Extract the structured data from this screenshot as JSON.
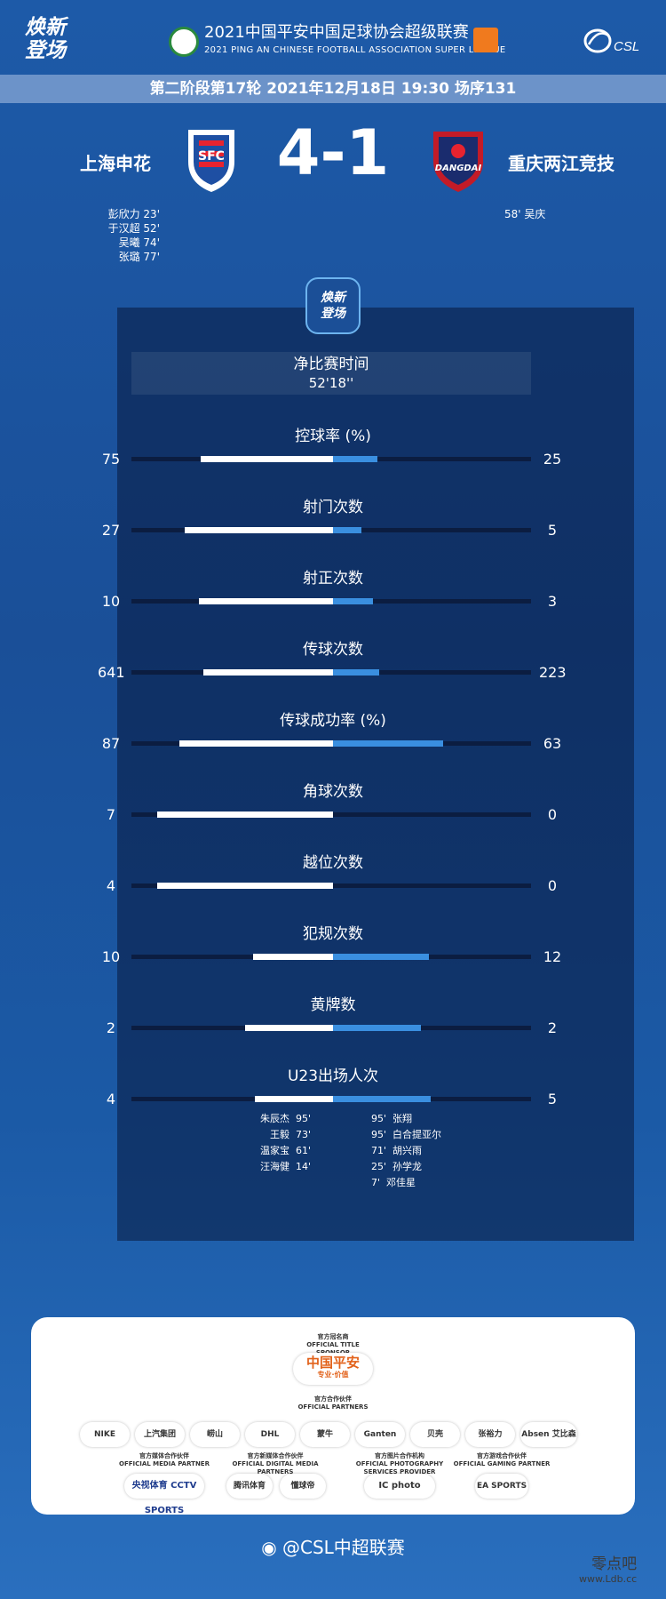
{
  "header": {
    "brand": [
      "焕新",
      "登场"
    ],
    "title_cn": "2021中国平安中国足球协会超级联赛",
    "title_en": "2021 PING AN CHINESE FOOTBALL ASSOCIATION SUPER LEAGUE",
    "csl_mark": "CSL"
  },
  "match": {
    "round_info": "第二阶段第17轮  2021年12月18日 19:30 场序131",
    "home_team": "上海申花",
    "away_team": "重庆两江竞技",
    "score": "4-1",
    "home_crest_text": "SFC",
    "away_crest_text": "DANGDAI",
    "home_scorers": [
      {
        "name": "彭欣力",
        "minute": "23'"
      },
      {
        "name": "于汉超",
        "minute": "52'"
      },
      {
        "name": "吴曦",
        "minute": "74'"
      },
      {
        "name": "张璐",
        "minute": "77'"
      }
    ],
    "away_scorers": [
      {
        "name": "吴庆",
        "minute": "58'"
      }
    ]
  },
  "panel": {
    "badge": [
      "焕新",
      "登场"
    ],
    "net_time_label": "净比赛时间",
    "net_time_value": "52'18''"
  },
  "stats": [
    {
      "label": "控球率 (%)",
      "home": "75",
      "away": "25",
      "home_frac": 0.66,
      "away_frac": 0.22
    },
    {
      "label": "射门次数",
      "home": "27",
      "away": "5",
      "home_frac": 0.74,
      "away_frac": 0.14
    },
    {
      "label": "射正次数",
      "home": "10",
      "away": "3",
      "home_frac": 0.67,
      "away_frac": 0.2
    },
    {
      "label": "传球次数",
      "home": "641",
      "away": "223",
      "home_frac": 0.65,
      "away_frac": 0.23
    },
    {
      "label": "传球成功率 (%)",
      "home": "87",
      "away": "63",
      "home_frac": 0.77,
      "away_frac": 0.55
    },
    {
      "label": "角球次数",
      "home": "7",
      "away": "0",
      "home_frac": 0.88,
      "away_frac": 0.0
    },
    {
      "label": "越位次数",
      "home": "4",
      "away": "0",
      "home_frac": 0.88,
      "away_frac": 0.0
    },
    {
      "label": "犯规次数",
      "home": "10",
      "away": "12",
      "home_frac": 0.4,
      "away_frac": 0.48
    },
    {
      "label": "黄牌数",
      "home": "2",
      "away": "2",
      "home_frac": 0.44,
      "away_frac": 0.44
    },
    {
      "label": "U23出场人次",
      "home": "4",
      "away": "5",
      "home_frac": 0.39,
      "away_frac": 0.49
    }
  ],
  "u23": {
    "home": [
      {
        "name": "朱辰杰",
        "minute": "95'"
      },
      {
        "name": "王毅",
        "minute": "73'"
      },
      {
        "name": "温家宝",
        "minute": "61'"
      },
      {
        "name": "汪海健",
        "minute": "14'"
      }
    ],
    "away": [
      {
        "name": "张翔",
        "minute": "95'"
      },
      {
        "name": "白合提亚尔",
        "minute": "95'"
      },
      {
        "name": "胡兴雨",
        "minute": "71'"
      },
      {
        "name": "孙学龙",
        "minute": "25'"
      },
      {
        "name": "邓佳星",
        "minute": "7'"
      }
    ]
  },
  "sponsors": {
    "title_sponsor_cn": "官方冠名商",
    "title_sponsor_en": "OFFICIAL TITLE SPONSOR",
    "title_sponsor_logo": "中国平安",
    "title_sponsor_tag": "专业·价值",
    "partners_cn": "官方合作伙伴",
    "partners_en": "OFFICIAL PARTNERS",
    "partners": [
      "NIKE",
      "上汽集团",
      "崂山",
      "DHL",
      "蒙牛",
      "Ganten",
      "贝壳",
      "张裕力",
      "Absen 艾比森"
    ],
    "media_cn": "官方媒体合作伙伴",
    "media_en": "OFFICIAL MEDIA PARTNER",
    "media_logo": "央视体育 CCTV SPORTS",
    "digital_cn": "官方新媒体合作伙伴",
    "digital_en": "OFFICIAL DIGITAL MEDIA PARTNERS",
    "digital_logos": [
      "腾讯体育",
      "懂球帝"
    ],
    "photo_cn": "官方图片合作机构",
    "photo_en": "OFFICIAL PHOTOGRAPHY SERVICES PROVIDER",
    "photo_logo": "IC photo",
    "gaming_cn": "官方游戏合作伙伴",
    "gaming_en": "OFFICIAL GAMING PARTNER",
    "gaming_logo": "EA SPORTS"
  },
  "footer": {
    "handle": "@CSL中超联赛",
    "watermark": [
      "零点吧",
      "www.Ldb.cc"
    ]
  },
  "colors": {
    "home_bar": "#ffffff",
    "away_bar": "#3a8fe0",
    "background": "#1d5aa8"
  }
}
